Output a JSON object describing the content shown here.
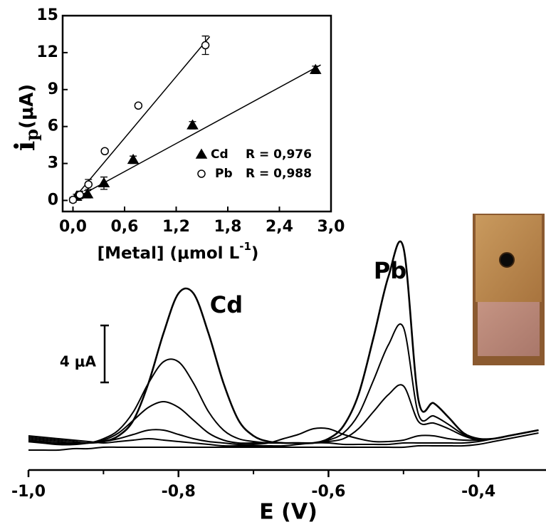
{
  "chart_data": [
    {
      "type": "line",
      "x": [
        -1.0,
        -0.98,
        -0.96,
        -0.94,
        -0.92,
        -0.9,
        -0.88,
        -0.86,
        -0.84,
        -0.82,
        -0.8,
        -0.78,
        -0.76,
        -0.74,
        -0.72,
        -0.7,
        -0.68,
        -0.66,
        -0.64,
        -0.62,
        -0.6,
        -0.58,
        -0.56,
        -0.54,
        -0.52,
        -0.5,
        -0.48,
        -0.46,
        -0.44,
        -0.42,
        -0.4,
        -0.38,
        -0.36,
        -0.34,
        -0.32
      ],
      "series": [
        {
          "color": "#000000",
          "values": [
            0.4,
            0.3,
            0.2,
            0.2,
            0.3,
            0.4,
            0.8,
            1.9,
            4.5,
            8.0,
            10.8,
            10.8,
            8.0,
            4.5,
            1.9,
            0.8,
            0.4,
            0.3,
            0.3,
            0.3,
            0.6,
            1.5,
            3.7,
            7.7,
            12.0,
            14.0,
            3.3,
            3.1,
            2.1,
            1.0,
            0.6,
            0.6,
            0.8,
            1.0,
            1.2
          ]
        },
        {
          "color": "#000000",
          "values": [
            0.5,
            0.4,
            0.3,
            0.3,
            0.3,
            0.6,
            1.2,
            2.5,
            4.5,
            6.0,
            6.0,
            4.5,
            2.5,
            1.2,
            0.6,
            0.4,
            0.3,
            0.3,
            0.3,
            0.3,
            0.5,
            1.0,
            2.3,
            4.7,
            7.2,
            8.4,
            2.3,
            2.2,
            1.6,
            0.9,
            0.6,
            0.6,
            0.8,
            1.0,
            1.2
          ]
        },
        {
          "color": "#000000",
          "values": [
            0.6,
            0.5,
            0.4,
            0.3,
            0.3,
            0.5,
            1.0,
            1.9,
            2.8,
            3.2,
            2.8,
            1.9,
            1.0,
            0.5,
            0.3,
            0.3,
            0.3,
            0.3,
            0.3,
            0.3,
            0.4,
            0.6,
            1.3,
            2.5,
            3.7,
            4.3,
            1.8,
            1.7,
            1.3,
            0.8,
            0.5,
            0.6,
            0.8,
            1.0,
            1.2
          ]
        },
        {
          "color": "#000000",
          "values": [
            0.7,
            0.6,
            0.5,
            0.4,
            0.3,
            0.4,
            0.6,
            0.9,
            1.2,
            1.2,
            0.9,
            0.6,
            0.4,
            0.3,
            0.2,
            0.2,
            0.3,
            0.6,
            0.9,
            1.3,
            1.3,
            0.9,
            0.6,
            0.4,
            0.4,
            0.5,
            0.8,
            0.8,
            0.6,
            0.5,
            0.5,
            0.6,
            0.8,
            1.0,
            1.2
          ]
        },
        {
          "color": "#000000",
          "values": [
            0.8,
            0.7,
            0.6,
            0.5,
            0.4,
            0.3,
            0.4,
            0.5,
            0.6,
            0.5,
            0.4,
            0.3,
            0.2,
            0.1,
            0.1,
            0.1,
            0.1,
            0.1,
            0.2,
            0.3,
            0.3,
            0.2,
            0.2,
            0.2,
            0.2,
            0.3,
            0.3,
            0.3,
            0.3,
            0.3,
            0.4,
            0.6,
            0.8,
            1.0,
            1.2
          ]
        },
        {
          "color": "#000000",
          "values": [
            -0.2,
            -0.2,
            -0.2,
            -0.1,
            -0.1,
            0,
            0,
            0,
            0,
            0,
            0,
            0,
            0,
            0,
            0,
            0,
            0,
            0,
            0,
            0,
            0,
            0,
            0,
            0,
            0,
            0,
            0.1,
            0.1,
            0.1,
            0.1,
            0.2,
            0.4,
            0.6,
            0.8,
            1.0
          ]
        }
      ],
      "xlim": [
        -1.0,
        -0.31
      ],
      "ylim": [
        -1,
        15
      ],
      "xticks": [
        {
          "value": -1.0,
          "label": "-1,0"
        },
        {
          "value": -0.8,
          "label": "-0,8"
        },
        {
          "value": -0.6,
          "label": "-0,6"
        },
        {
          "value": -0.4,
          "label": "-0,4"
        }
      ],
      "xminor_ticks": [
        -0.9,
        -0.7,
        -0.5
      ],
      "xlabel": "E (V)",
      "scale_bar": {
        "value": 4,
        "label": "4 μA"
      },
      "annotations": [
        "Cd",
        "Pb"
      ]
    },
    {
      "type": "scatter",
      "xlim": [
        -0.12,
        3.0
      ],
      "ylim": [
        -0.9,
        15
      ],
      "xticks": [
        {
          "value": 0,
          "label": "0,0"
        },
        {
          "value": 0.6,
          "label": "0,6"
        },
        {
          "value": 1.2,
          "label": "1,2"
        },
        {
          "value": 1.8,
          "label": "1,8"
        },
        {
          "value": 2.4,
          "label": "2,4"
        },
        {
          "value": 3.0,
          "label": "3,0"
        }
      ],
      "yticks": [
        0,
        3,
        6,
        9,
        12,
        15
      ],
      "ylabel": "i",
      "ylabel_sub": "p",
      "ylabel_unit": "(μA)",
      "xlabel": "[Metal] (μmol L",
      "xlabel_sup": "-1",
      "xlabel_end": ")",
      "series": [
        {
          "name": "Cd",
          "r_label": "R = 0,976",
          "marker": "triangle",
          "filled": true,
          "color": "#000000",
          "x": [
            0.04,
            0.17,
            0.36,
            0.7,
            1.39,
            2.82
          ],
          "values": [
            0.3,
            0.5,
            1.4,
            3.3,
            6.1,
            10.6
          ],
          "errors": [
            0.2,
            0.3,
            0.5,
            0.3,
            0.3,
            0.3
          ],
          "fit_x": [
            -0.03,
            2.88
          ],
          "fit_values": [
            -0.05,
            11.0
          ]
        },
        {
          "name": "Pb",
          "r_label": "R = 0,988",
          "marker": "circle",
          "filled": false,
          "color": "#000000",
          "x": [
            0.0,
            0.08,
            0.18,
            0.37,
            0.76,
            1.54
          ],
          "values": [
            0.05,
            0.45,
            1.3,
            4.0,
            7.7,
            12.6
          ],
          "errors": [
            0.2,
            0.3,
            0.4,
            0.15,
            0.15,
            0.75
          ],
          "fit_x": [
            -0.02,
            1.59
          ],
          "fit_values": [
            -0.1,
            13.3
          ]
        }
      ]
    }
  ]
}
